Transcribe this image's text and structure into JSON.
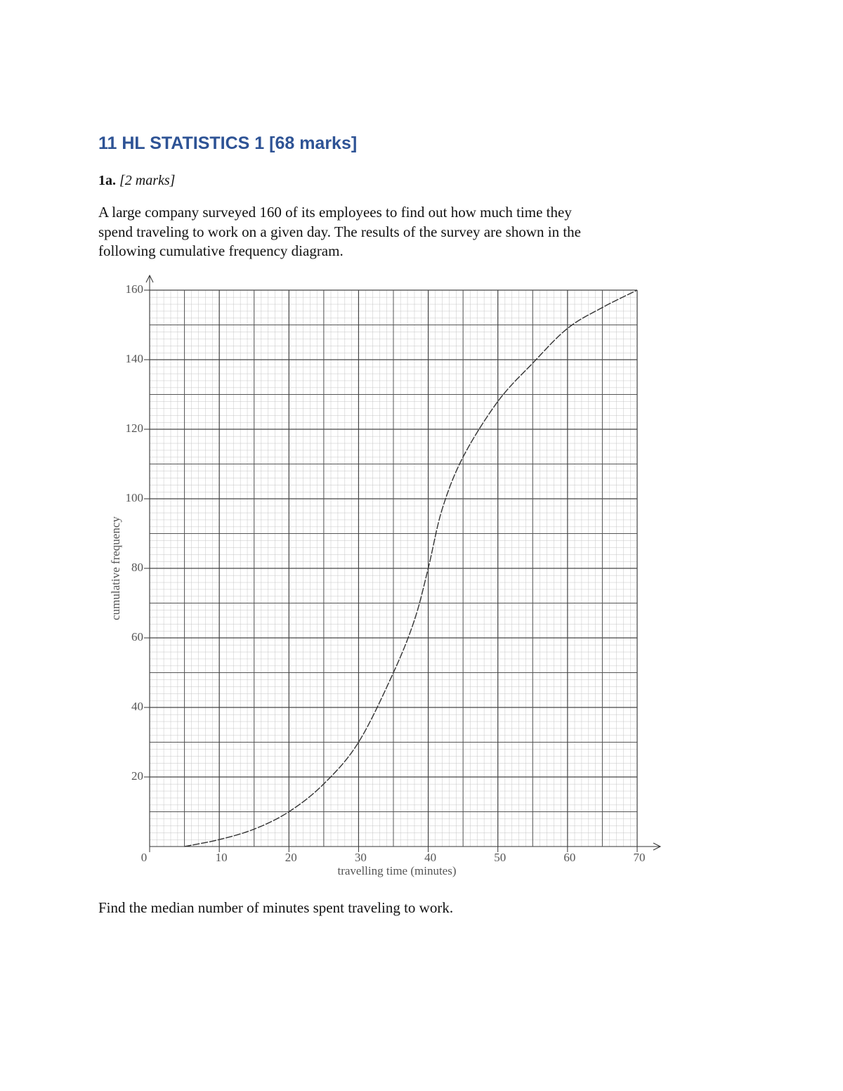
{
  "header": {
    "title": "11 HL STATISTICS 1 [68 marks]"
  },
  "question": {
    "number": "1a.",
    "marks": "[2 marks]",
    "lines": [
      "A large company surveyed 160 of its employees to find out how much time they",
      "spend traveling to work on a given day. The results of the survey are shown in the",
      "following cumulative frequency diagram."
    ],
    "prompt": "Find the median number of minutes spent traveling to work."
  },
  "chart_data": {
    "type": "line",
    "x_label": "travelling time (minutes)",
    "y_label": "cumulative frequency",
    "x": [
      5,
      10,
      15,
      20,
      25,
      30,
      35,
      38,
      40,
      42,
      45,
      50,
      55,
      60,
      65,
      70
    ],
    "series": [
      {
        "name": "cumulative frequency",
        "color": "#333333",
        "values": [
          0,
          2,
          5,
          10,
          18,
          30,
          50,
          65,
          80,
          97,
          112,
          128,
          139,
          149,
          155,
          160
        ]
      }
    ],
    "xlim": [
      0,
      70
    ],
    "ylim": [
      0,
      160
    ],
    "xticks": [
      0,
      10,
      20,
      30,
      40,
      50,
      60,
      70
    ],
    "yticks": [
      20,
      40,
      60,
      80,
      100,
      120,
      140,
      160
    ],
    "grid": true
  }
}
